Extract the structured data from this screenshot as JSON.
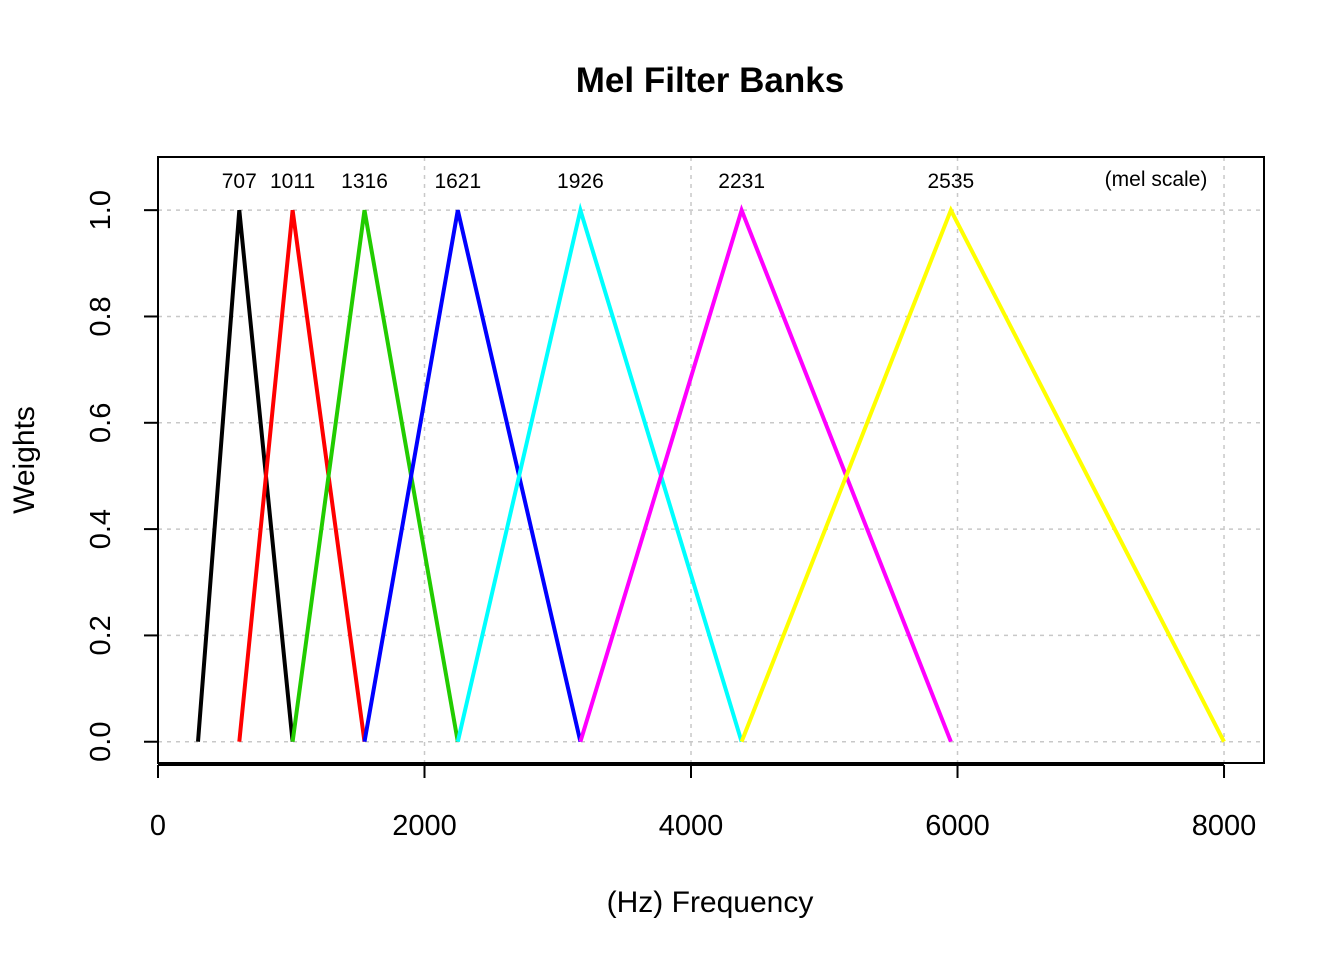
{
  "chart_data": {
    "type": "line",
    "title": "Mel Filter Banks",
    "xlabel": "(Hz) Frequency",
    "ylabel": "Weights",
    "xlim": [
      0,
      8300
    ],
    "ylim": [
      -0.04,
      1.1
    ],
    "xticks": [
      0,
      2000,
      4000,
      6000,
      8000
    ],
    "yticks": [
      0.0,
      0.2,
      0.4,
      0.6,
      0.8,
      1.0
    ],
    "xtick_labels": [
      "0",
      "2000",
      "4000",
      "6000",
      "8000"
    ],
    "ytick_labels": [
      "0.0",
      "0.2",
      "0.4",
      "0.6",
      "0.8",
      "1.0"
    ],
    "grid": true,
    "scale_note": "(mel scale)",
    "series": [
      {
        "color": "#000000",
        "peak_label": "707",
        "x": [
          300,
          610,
          1010
        ],
        "y": [
          0,
          1,
          0
        ]
      },
      {
        "color": "#ff0000",
        "peak_label": "1011",
        "x": [
          610,
          1010,
          1550
        ],
        "y": [
          0,
          1,
          0
        ]
      },
      {
        "color": "#22cc00",
        "peak_label": "1316",
        "x": [
          1010,
          1550,
          2250
        ],
        "y": [
          0,
          1,
          0
        ]
      },
      {
        "color": "#0000ff",
        "peak_label": "1621",
        "x": [
          1550,
          2250,
          3170
        ],
        "y": [
          0,
          1,
          0
        ]
      },
      {
        "color": "#00ffff",
        "peak_label": "1926",
        "x": [
          2250,
          3170,
          4380
        ],
        "y": [
          0,
          1,
          0
        ]
      },
      {
        "color": "#ff00ff",
        "peak_label": "2231",
        "x": [
          3170,
          4380,
          5950
        ],
        "y": [
          0,
          1,
          0
        ]
      },
      {
        "color": "#ffff00",
        "peak_label": "2535",
        "x": [
          4380,
          5950,
          8000
        ],
        "y": [
          0,
          1,
          0
        ]
      }
    ]
  }
}
